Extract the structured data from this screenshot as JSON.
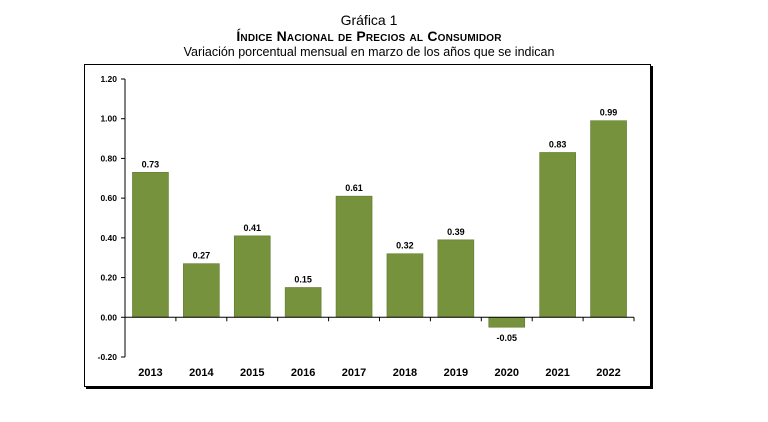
{
  "header": {
    "label": "Gráfica 1",
    "title": "Índice Nacional de Precios al Consumidor",
    "subtitle": "Variación porcentual mensual en marzo de los años que se indican"
  },
  "chart_data": {
    "type": "bar",
    "categories": [
      "2013",
      "2014",
      "2015",
      "2016",
      "2017",
      "2018",
      "2019",
      "2020",
      "2021",
      "2022"
    ],
    "values": [
      0.73,
      0.27,
      0.41,
      0.15,
      0.61,
      0.32,
      0.39,
      -0.05,
      0.83,
      0.99
    ],
    "data_labels": [
      "0.73",
      "0.27",
      "0.41",
      "0.15",
      "0.61",
      "0.32",
      "0.39",
      "-0.05",
      "0.83",
      "0.99"
    ],
    "title": "Índice Nacional de Precios al Consumidor",
    "xlabel": "",
    "ylabel": "",
    "ylim": [
      -0.2,
      1.2
    ],
    "yticks": [
      -0.2,
      0.0,
      0.2,
      0.4,
      0.6,
      0.8,
      1.0,
      1.2
    ],
    "ytick_labels": [
      "-0.20",
      "0.00",
      "0.20",
      "0.40",
      "0.60",
      "0.80",
      "1.00",
      "1.20"
    ],
    "grid": false,
    "colors": {
      "bar": "#76923c",
      "bar_edge": "#5f7a2e",
      "axis": "#000000"
    }
  }
}
